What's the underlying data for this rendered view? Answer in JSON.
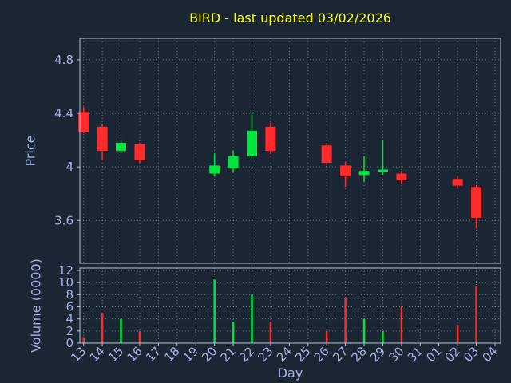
{
  "chart_data": {
    "type": "candlestick",
    "title": "BIRD - last updated 03/02/2026",
    "xlabel": "Day",
    "price_ylabel": "Price",
    "volume_ylabel": "Volume (0000)",
    "x_ticklabels": [
      "13",
      "14",
      "15",
      "16",
      "17",
      "18",
      "19",
      "20",
      "21",
      "22",
      "23",
      "24",
      "25",
      "26",
      "27",
      "28",
      "29",
      "30",
      "31",
      "01",
      "02",
      "03",
      "04"
    ],
    "price_ticks": [
      {
        "label": "4.8",
        "value": 4.8
      },
      {
        "label": "4.4",
        "value": 4.4
      },
      {
        "label": "4",
        "value": 4.0
      },
      {
        "label": "3.6",
        "value": 3.6
      }
    ],
    "price_ylim": [
      3.28,
      4.96
    ],
    "volume_ticks": [
      {
        "label": "12",
        "value": 12
      },
      {
        "label": "10",
        "value": 10
      },
      {
        "label": "8",
        "value": 8
      },
      {
        "label": "6",
        "value": 6
      },
      {
        "label": "4",
        "value": 4
      },
      {
        "label": "2",
        "value": 2
      },
      {
        "label": "0",
        "value": 0
      }
    ],
    "volume_ylim": [
      0,
      12.4
    ],
    "grid": "dotted",
    "legend_position": "none",
    "candles": [
      {
        "day": "13",
        "open": 4.41,
        "high": 4.45,
        "low": 4.25,
        "close": 4.26,
        "volume": 1.0
      },
      {
        "day": "14",
        "open": 4.3,
        "high": 4.32,
        "low": 4.05,
        "close": 4.12,
        "volume": 5.0
      },
      {
        "day": "15",
        "open": 4.12,
        "high": 4.2,
        "low": 4.1,
        "close": 4.18,
        "volume": 4.0
      },
      {
        "day": "16",
        "open": 4.17,
        "high": 4.18,
        "low": 4.03,
        "close": 4.05,
        "volume": 2.0
      },
      {
        "day": "20",
        "open": 3.95,
        "high": 4.1,
        "low": 3.93,
        "close": 4.01,
        "volume": 10.5
      },
      {
        "day": "21",
        "open": 3.99,
        "high": 4.12,
        "low": 3.96,
        "close": 4.08,
        "volume": 3.5
      },
      {
        "day": "22",
        "open": 4.08,
        "high": 4.4,
        "low": 4.06,
        "close": 4.27,
        "volume": 8.0
      },
      {
        "day": "23",
        "open": 4.3,
        "high": 4.33,
        "low": 4.1,
        "close": 4.12,
        "volume": 3.5
      },
      {
        "day": "26",
        "open": 4.16,
        "high": 4.18,
        "low": 4.01,
        "close": 4.03,
        "volume": 2.0
      },
      {
        "day": "27",
        "open": 4.01,
        "high": 4.04,
        "low": 3.85,
        "close": 3.93,
        "volume": 7.5
      },
      {
        "day": "28",
        "open": 3.94,
        "high": 4.08,
        "low": 3.89,
        "close": 3.97,
        "volume": 4.0
      },
      {
        "day": "29",
        "open": 3.96,
        "high": 4.2,
        "low": 3.94,
        "close": 3.98,
        "volume": 2.0
      },
      {
        "day": "30",
        "open": 3.95,
        "high": 3.97,
        "low": 3.87,
        "close": 3.9,
        "volume": 6.0
      },
      {
        "day": "02",
        "open": 3.91,
        "high": 3.93,
        "low": 3.84,
        "close": 3.86,
        "volume": 3.0
      },
      {
        "day": "03",
        "open": 3.85,
        "high": 3.86,
        "low": 3.54,
        "close": 3.62,
        "volume": 9.5
      }
    ],
    "colors": {
      "background": "#1a2633",
      "up": "#00e53c",
      "down": "#ff2a2a",
      "title": "#ffff00",
      "axis_text": "#a2b4e2",
      "spine": "#b6c2d2",
      "grid": "#ffffff"
    }
  }
}
